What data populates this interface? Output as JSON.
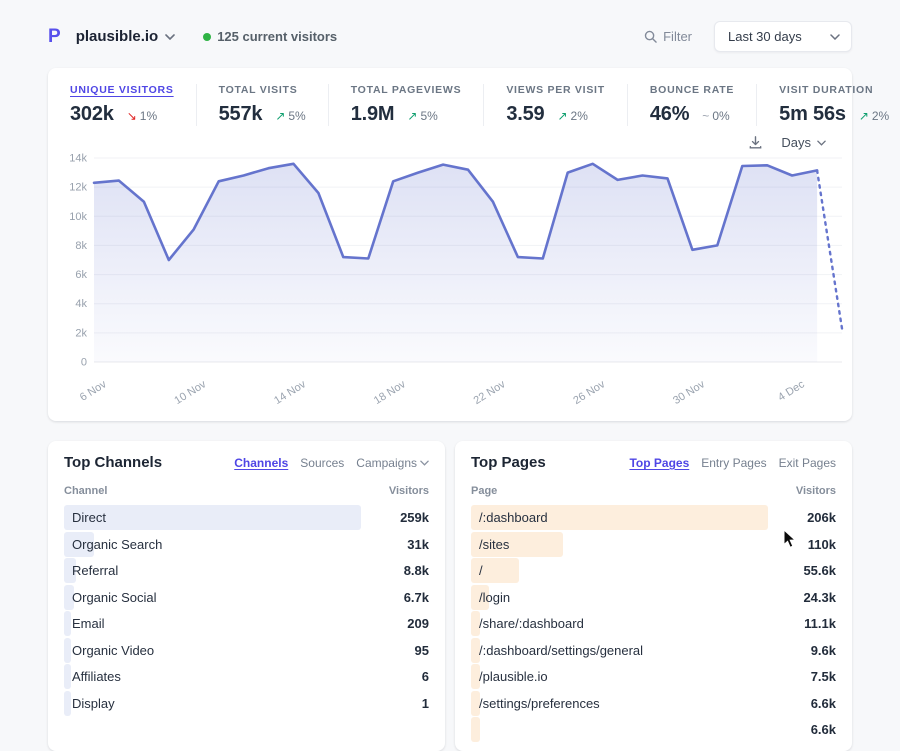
{
  "header": {
    "site_name": "plausible.io",
    "current_visitors": "125 current visitors",
    "filter_label": "Filter",
    "date_range": "Last 30 days"
  },
  "stats": [
    {
      "label": "UNIQUE VISITORS",
      "value": "302k",
      "change": "1%",
      "trend": "down",
      "active": true
    },
    {
      "label": "TOTAL VISITS",
      "value": "557k",
      "change": "5%",
      "trend": "up",
      "active": false
    },
    {
      "label": "TOTAL PAGEVIEWS",
      "value": "1.9M",
      "change": "5%",
      "trend": "up",
      "active": false
    },
    {
      "label": "VIEWS PER VISIT",
      "value": "3.59",
      "change": "2%",
      "trend": "up",
      "active": false
    },
    {
      "label": "BOUNCE RATE",
      "value": "46%",
      "change": "0%",
      "trend": "flat",
      "active": false
    },
    {
      "label": "VISIT DURATION",
      "value": "5m 56s",
      "change": "2%",
      "trend": "up",
      "active": false
    }
  ],
  "chart_controls": {
    "interval": "Days"
  },
  "chart_data": {
    "type": "area",
    "title": "Unique visitors - last 30 days",
    "series_name": "Unique visitors",
    "values": [
      12300,
      12450,
      11000,
      7000,
      9100,
      12400,
      12800,
      13300,
      13600,
      11600,
      7200,
      7100,
      12400,
      13000,
      13550,
      13200,
      11000,
      7200,
      7100,
      13000,
      13600,
      12500,
      12800,
      12600,
      7700,
      8000,
      13450,
      13500,
      12800,
      13150,
      2300
    ],
    "x_tick_labels": [
      "6 Nov",
      "10 Nov",
      "14 Nov",
      "18 Nov",
      "22 Nov",
      "26 Nov",
      "30 Nov",
      "4 Dec"
    ],
    "x_tick_indices": [
      0,
      4,
      8,
      12,
      16,
      20,
      24,
      28
    ],
    "y_ticks": [
      0,
      2000,
      4000,
      6000,
      8000,
      10000,
      12000,
      14000
    ],
    "y_tick_labels": [
      "0",
      "2k",
      "4k",
      "6k",
      "8k",
      "10k",
      "12k",
      "14k"
    ],
    "ylim": [
      0,
      14000
    ],
    "grid": true,
    "legend": "none",
    "last_point_dotted": true,
    "note": "final dotted segment = incomplete current day"
  },
  "top_channels": {
    "title": "Top Channels",
    "tabs": [
      {
        "label": "Channels",
        "active": true,
        "chevron": false
      },
      {
        "label": "Sources",
        "active": false,
        "chevron": false
      },
      {
        "label": "Campaigns",
        "active": false,
        "chevron": true
      }
    ],
    "columns": {
      "name": "Channel",
      "value": "Visitors"
    },
    "rows": [
      {
        "name": "Direct",
        "value": "259k",
        "bar_pct": 100
      },
      {
        "name": "Organic Search",
        "value": "31k",
        "bar_pct": 10
      },
      {
        "name": "Referral",
        "value": "8.8k",
        "bar_pct": 4
      },
      {
        "name": "Organic Social",
        "value": "6.7k",
        "bar_pct": 3.2
      },
      {
        "name": "Email",
        "value": "209",
        "bar_pct": 2.4
      },
      {
        "name": "Organic Video",
        "value": "95",
        "bar_pct": 2.4
      },
      {
        "name": "Affiliates",
        "value": "6",
        "bar_pct": 2.4
      },
      {
        "name": "Display",
        "value": "1",
        "bar_pct": 2.4
      }
    ]
  },
  "top_pages": {
    "title": "Top Pages",
    "tabs": [
      {
        "label": "Top Pages",
        "active": true,
        "chevron": false
      },
      {
        "label": "Entry Pages",
        "active": false,
        "chevron": false
      },
      {
        "label": "Exit Pages",
        "active": false,
        "chevron": false
      }
    ],
    "columns": {
      "name": "Page",
      "value": "Visitors"
    },
    "rows": [
      {
        "name": "/:dashboard",
        "value": "206k",
        "bar_pct": 100
      },
      {
        "name": "/sites",
        "value": "110k",
        "bar_pct": 31
      },
      {
        "name": "/",
        "value": "55.6k",
        "bar_pct": 16
      },
      {
        "name": "/login",
        "value": "24.3k",
        "bar_pct": 6
      },
      {
        "name": "/share/:dashboard",
        "value": "11.1k",
        "bar_pct": 3
      },
      {
        "name": "/:dashboard/settings/general",
        "value": "9.6k",
        "bar_pct": 3
      },
      {
        "name": "/plausible.io",
        "value": "7.5k",
        "bar_pct": 3
      },
      {
        "name": "/settings/preferences",
        "value": "6.6k",
        "bar_pct": 3
      },
      {
        "name": "",
        "value": "6.6k",
        "bar_pct": 3
      }
    ]
  },
  "colors": {
    "accent_indigo": "#4f46e5",
    "chart_line": "#6574cd",
    "chart_fill_top": "rgba(101,116,205,0.22)",
    "chart_fill_bottom": "rgba(101,116,205,0.03)",
    "positive_green": "#0e9f6e",
    "negative_red": "#e02424",
    "neutral_gray": "#9ca3af",
    "live_dot_green": "#2fb344",
    "channels_bar": "#e9edf8",
    "pages_bar": "#fdeedd"
  }
}
